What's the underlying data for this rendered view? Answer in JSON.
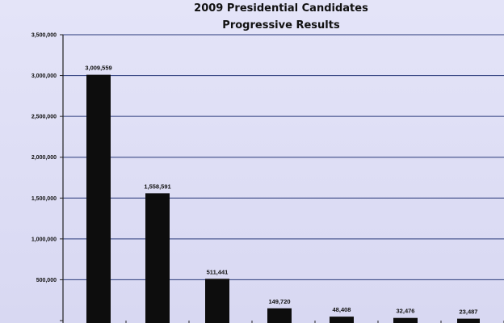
{
  "chart_data": {
    "type": "bar",
    "title_lines": [
      "2009 Presidential Candidates",
      "Progressive Results"
    ],
    "categories": [
      "",
      "",
      "",
      "",
      "",
      "",
      ""
    ],
    "values": [
      3009559,
      1558591,
      511441,
      149720,
      48408,
      32476,
      23487
    ],
    "data_labels": [
      "3,009,559",
      "1,558,591",
      "511,441",
      "149,720",
      "48,408",
      "32,476",
      "23,487"
    ],
    "ylim": [
      0,
      3500000
    ],
    "yticks": [
      0,
      500000,
      1000000,
      1500000,
      2000000,
      2500000,
      3000000,
      3500000
    ],
    "ytick_labels": [
      "",
      "500,000",
      "1,000,000",
      "1,500,000",
      "2,000,000",
      "2,500,000",
      "3,000,000",
      "3,500,000"
    ],
    "grid": true,
    "legend": "none",
    "colors": {
      "bar": "#0d0d0d",
      "grid": "#2a3a7a",
      "background": "#dcdcf4"
    }
  }
}
